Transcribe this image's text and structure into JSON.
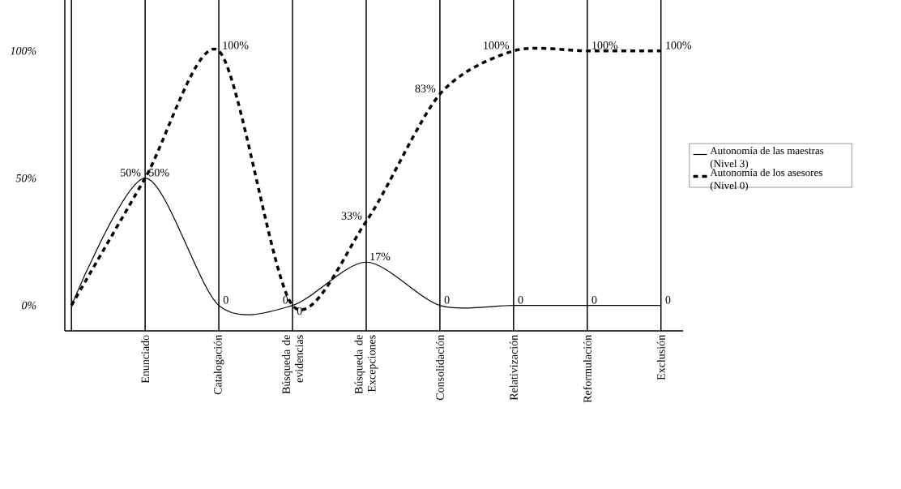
{
  "chart_data": {
    "type": "line",
    "categories": [
      null,
      "Enunciado",
      "Catalogación",
      "Búsqueda de evidencias",
      "Búsqueda de Excepciones",
      "Consolidación",
      "Relativización",
      "Reformulación",
      "Exclusión"
    ],
    "series": [
      {
        "name": "Autonomía de las maestras (Nivel 3)",
        "color": "#000000",
        "line_style": "solid",
        "values": [
          0,
          50,
          0,
          0,
          17,
          0,
          0,
          0,
          0
        ],
        "value_labels": [
          null,
          "50%",
          "0",
          "0",
          "17%",
          "0",
          "0",
          "0",
          "0"
        ]
      },
      {
        "name": "Autonomía de los asesores (Nivel 0)",
        "color": "#000000",
        "line_style": "dashed",
        "values": [
          0,
          50,
          100,
          0,
          33,
          83,
          100,
          100,
          100
        ],
        "value_labels": [
          null,
          "50%",
          "100%",
          "0",
          "33%",
          "83%",
          "100%",
          "100%",
          "100%"
        ]
      }
    ],
    "ylim": [
      -10,
      120
    ],
    "yticks": [
      {
        "value": 0,
        "label": "0%"
      },
      {
        "value": 50,
        "label": "50%"
      },
      {
        "value": 100,
        "label": "100%"
      }
    ],
    "grid": "x",
    "legend": "right",
    "marker": "none"
  }
}
